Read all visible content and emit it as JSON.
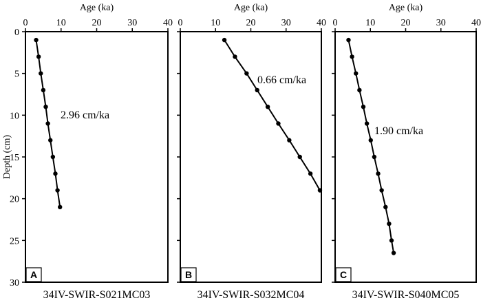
{
  "figure": {
    "y_axis_label": "Depth (cm)"
  },
  "chart_data": [
    {
      "type": "line",
      "panel": "A",
      "x_axis_label": "Age (ka)",
      "xlim": [
        0,
        40
      ],
      "ylim": [
        0,
        30
      ],
      "y_inverted": true,
      "x_ticks": [
        "0",
        "10",
        "20",
        "30",
        "40"
      ],
      "y_ticks": [
        "0",
        "5",
        "10",
        "15",
        "20",
        "25",
        "30"
      ],
      "annotation": "2.96 cm/ka",
      "station": "34IV-SWIR-S021MC03",
      "points": [
        {
          "age": 3.0,
          "depth": 1
        },
        {
          "age": 3.7,
          "depth": 3
        },
        {
          "age": 4.3,
          "depth": 5
        },
        {
          "age": 5.0,
          "depth": 7
        },
        {
          "age": 5.7,
          "depth": 9
        },
        {
          "age": 6.3,
          "depth": 11
        },
        {
          "age": 7.0,
          "depth": 13
        },
        {
          "age": 7.7,
          "depth": 15
        },
        {
          "age": 8.4,
          "depth": 17
        },
        {
          "age": 9.0,
          "depth": 19
        },
        {
          "age": 9.7,
          "depth": 21
        }
      ]
    },
    {
      "type": "line",
      "panel": "B",
      "x_axis_label": "Age (ka)",
      "xlim": [
        0,
        40
      ],
      "ylim": [
        0,
        30
      ],
      "y_inverted": true,
      "x_ticks": [
        "0",
        "10",
        "20",
        "30",
        "40"
      ],
      "y_ticks": [],
      "annotation": "0.66 cm/ka",
      "station": "34IV-SWIR-S032MC04",
      "points": [
        {
          "age": 12.5,
          "depth": 1
        },
        {
          "age": 15.5,
          "depth": 3
        },
        {
          "age": 18.8,
          "depth": 5
        },
        {
          "age": 21.8,
          "depth": 7
        },
        {
          "age": 24.8,
          "depth": 9
        },
        {
          "age": 27.8,
          "depth": 11
        },
        {
          "age": 30.9,
          "depth": 13
        },
        {
          "age": 33.9,
          "depth": 15
        },
        {
          "age": 36.9,
          "depth": 17
        },
        {
          "age": 39.6,
          "depth": 19
        }
      ]
    },
    {
      "type": "line",
      "panel": "C",
      "x_axis_label": "Age (ka)",
      "xlim": [
        0,
        40
      ],
      "ylim": [
        0,
        30
      ],
      "y_inverted": true,
      "x_ticks": [
        "0",
        "10",
        "20",
        "30",
        "40"
      ],
      "y_ticks": [],
      "annotation": "1.90 cm/ka",
      "station": "34IV-SWIR-S040MC05",
      "points": [
        {
          "age": 3.8,
          "depth": 1
        },
        {
          "age": 4.8,
          "depth": 3
        },
        {
          "age": 5.9,
          "depth": 5
        },
        {
          "age": 6.9,
          "depth": 7
        },
        {
          "age": 8.0,
          "depth": 9
        },
        {
          "age": 9.0,
          "depth": 11
        },
        {
          "age": 10.1,
          "depth": 13
        },
        {
          "age": 11.1,
          "depth": 15
        },
        {
          "age": 12.2,
          "depth": 17
        },
        {
          "age": 13.2,
          "depth": 19
        },
        {
          "age": 14.3,
          "depth": 21
        },
        {
          "age": 15.3,
          "depth": 23
        },
        {
          "age": 16.0,
          "depth": 25
        },
        {
          "age": 16.6,
          "depth": 26.5
        }
      ]
    }
  ]
}
